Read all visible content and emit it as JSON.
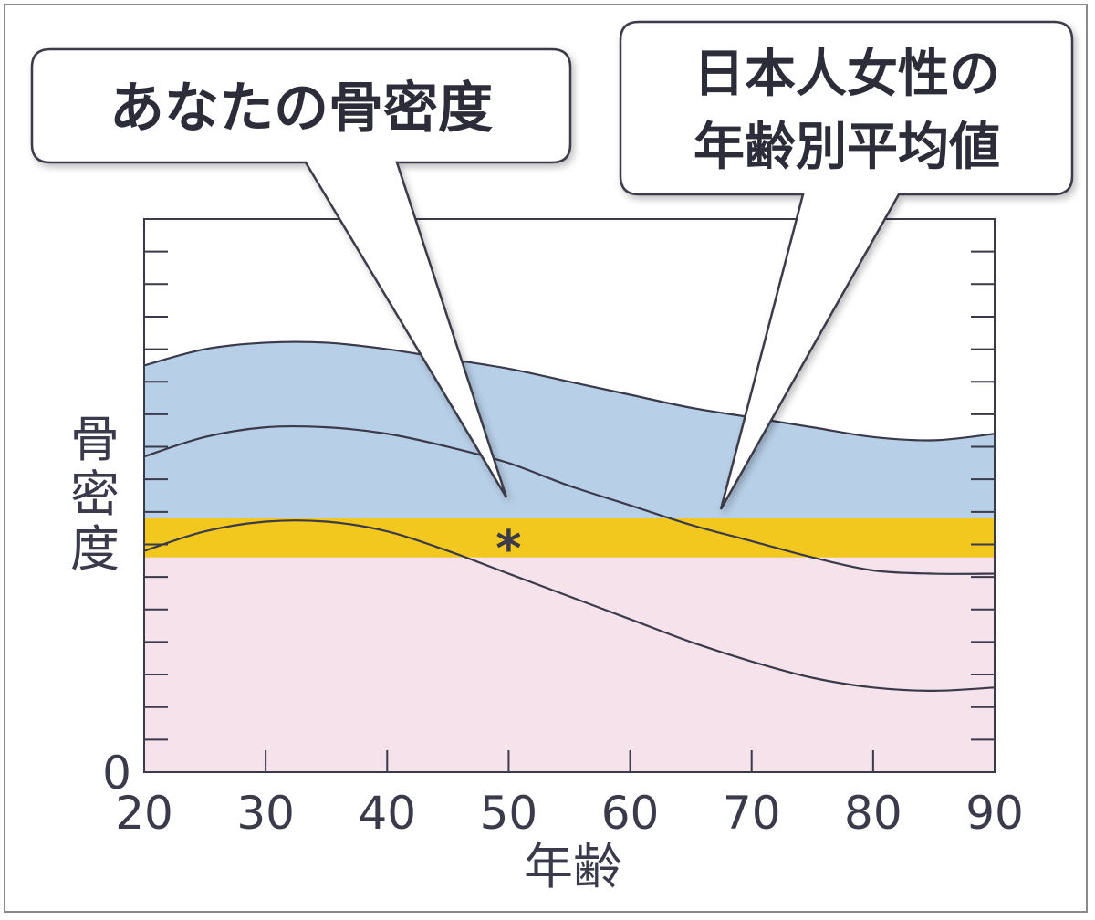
{
  "chart_data": {
    "type": "area",
    "xlabel": "年齢",
    "ylabel": "骨密度",
    "xlim": [
      20,
      90
    ],
    "ylim": [
      0,
      17
    ],
    "x_ticks": [
      20,
      30,
      40,
      50,
      60,
      70,
      80,
      90
    ],
    "y_tick_labels": [
      {
        "value": 0,
        "label": "0"
      }
    ],
    "grid": false,
    "colors": {
      "upper_band": "#b7cfe7",
      "highlight_band": "#f2c81e",
      "lower_region": "#f5e2ea",
      "curve": "#3a3a4a"
    },
    "curves": {
      "x": [
        20,
        25,
        30,
        35,
        40,
        45,
        50,
        55,
        60,
        65,
        70,
        75,
        80,
        85,
        90
      ],
      "upper": [
        12.5,
        13.0,
        13.2,
        13.2,
        13.0,
        12.7,
        12.4,
        12.0,
        11.6,
        11.2,
        10.9,
        10.6,
        10.3,
        10.2,
        10.4
      ],
      "average": [
        9.7,
        10.3,
        10.6,
        10.6,
        10.4,
        10.0,
        9.5,
        8.8,
        8.2,
        7.6,
        7.1,
        6.6,
        6.2,
        6.1,
        6.1
      ],
      "lower": [
        6.8,
        7.4,
        7.7,
        7.7,
        7.4,
        6.8,
        6.1,
        5.4,
        4.7,
        4.0,
        3.4,
        2.9,
        2.6,
        2.5,
        2.6
      ]
    },
    "highlight_band": [
      6.6,
      7.8
    ],
    "marker": {
      "x": 50,
      "y": 7.2,
      "symbol": "*"
    },
    "annotations": [
      {
        "lines": [
          "あなたの骨密度"
        ],
        "points_to": "marker"
      },
      {
        "lines": [
          "日本人女性の",
          "年齢別平均値"
        ],
        "points_to": "average"
      }
    ]
  }
}
